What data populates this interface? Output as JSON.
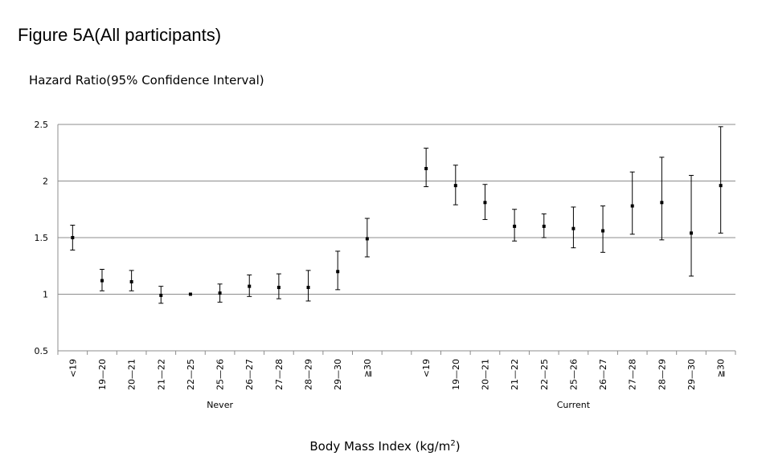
{
  "figure_title": "Figure 5A(All participants)",
  "chart_data": {
    "type": "scatter",
    "ylabel": "Hazard Ratio(95% Confidence Interval)",
    "xlabel_main": "Body Mass Index (kg/m",
    "xlabel_sup": "2",
    "xlabel_tail": ")",
    "ylim": [
      0.5,
      2.5
    ],
    "yticks": [
      0.5,
      1,
      1.5,
      2,
      2.5
    ],
    "grid": "horizontal",
    "groups": [
      {
        "name": "Never",
        "categories": [
          "<19",
          "19—20",
          "20—21",
          "21—22",
          "22—25",
          "25—26",
          "26—27",
          "27—28",
          "28—29",
          "29—30",
          "≧30"
        ],
        "estimate": [
          1.5,
          1.12,
          1.11,
          0.99,
          1.0,
          1.01,
          1.07,
          1.06,
          1.06,
          1.2,
          1.49
        ],
        "lower": [
          1.39,
          1.03,
          1.03,
          0.92,
          1.0,
          0.93,
          0.98,
          0.96,
          0.94,
          1.04,
          1.33
        ],
        "upper": [
          1.61,
          1.22,
          1.21,
          1.07,
          1.0,
          1.09,
          1.17,
          1.18,
          1.21,
          1.38,
          1.67
        ]
      },
      {
        "name": "Current",
        "categories": [
          "<19",
          "19—20",
          "20—21",
          "21—22",
          "22—25",
          "25—26",
          "26—27",
          "27—28",
          "28—29",
          "29—30",
          "≧30"
        ],
        "estimate": [
          2.11,
          1.96,
          1.81,
          1.6,
          1.6,
          1.58,
          1.56,
          1.78,
          1.81,
          1.54,
          1.96
        ],
        "lower": [
          1.95,
          1.79,
          1.66,
          1.47,
          1.5,
          1.41,
          1.37,
          1.53,
          1.48,
          1.16,
          1.54
        ],
        "upper": [
          2.29,
          2.14,
          1.97,
          1.75,
          1.71,
          1.77,
          1.78,
          2.08,
          2.21,
          2.05,
          2.48
        ]
      }
    ]
  }
}
